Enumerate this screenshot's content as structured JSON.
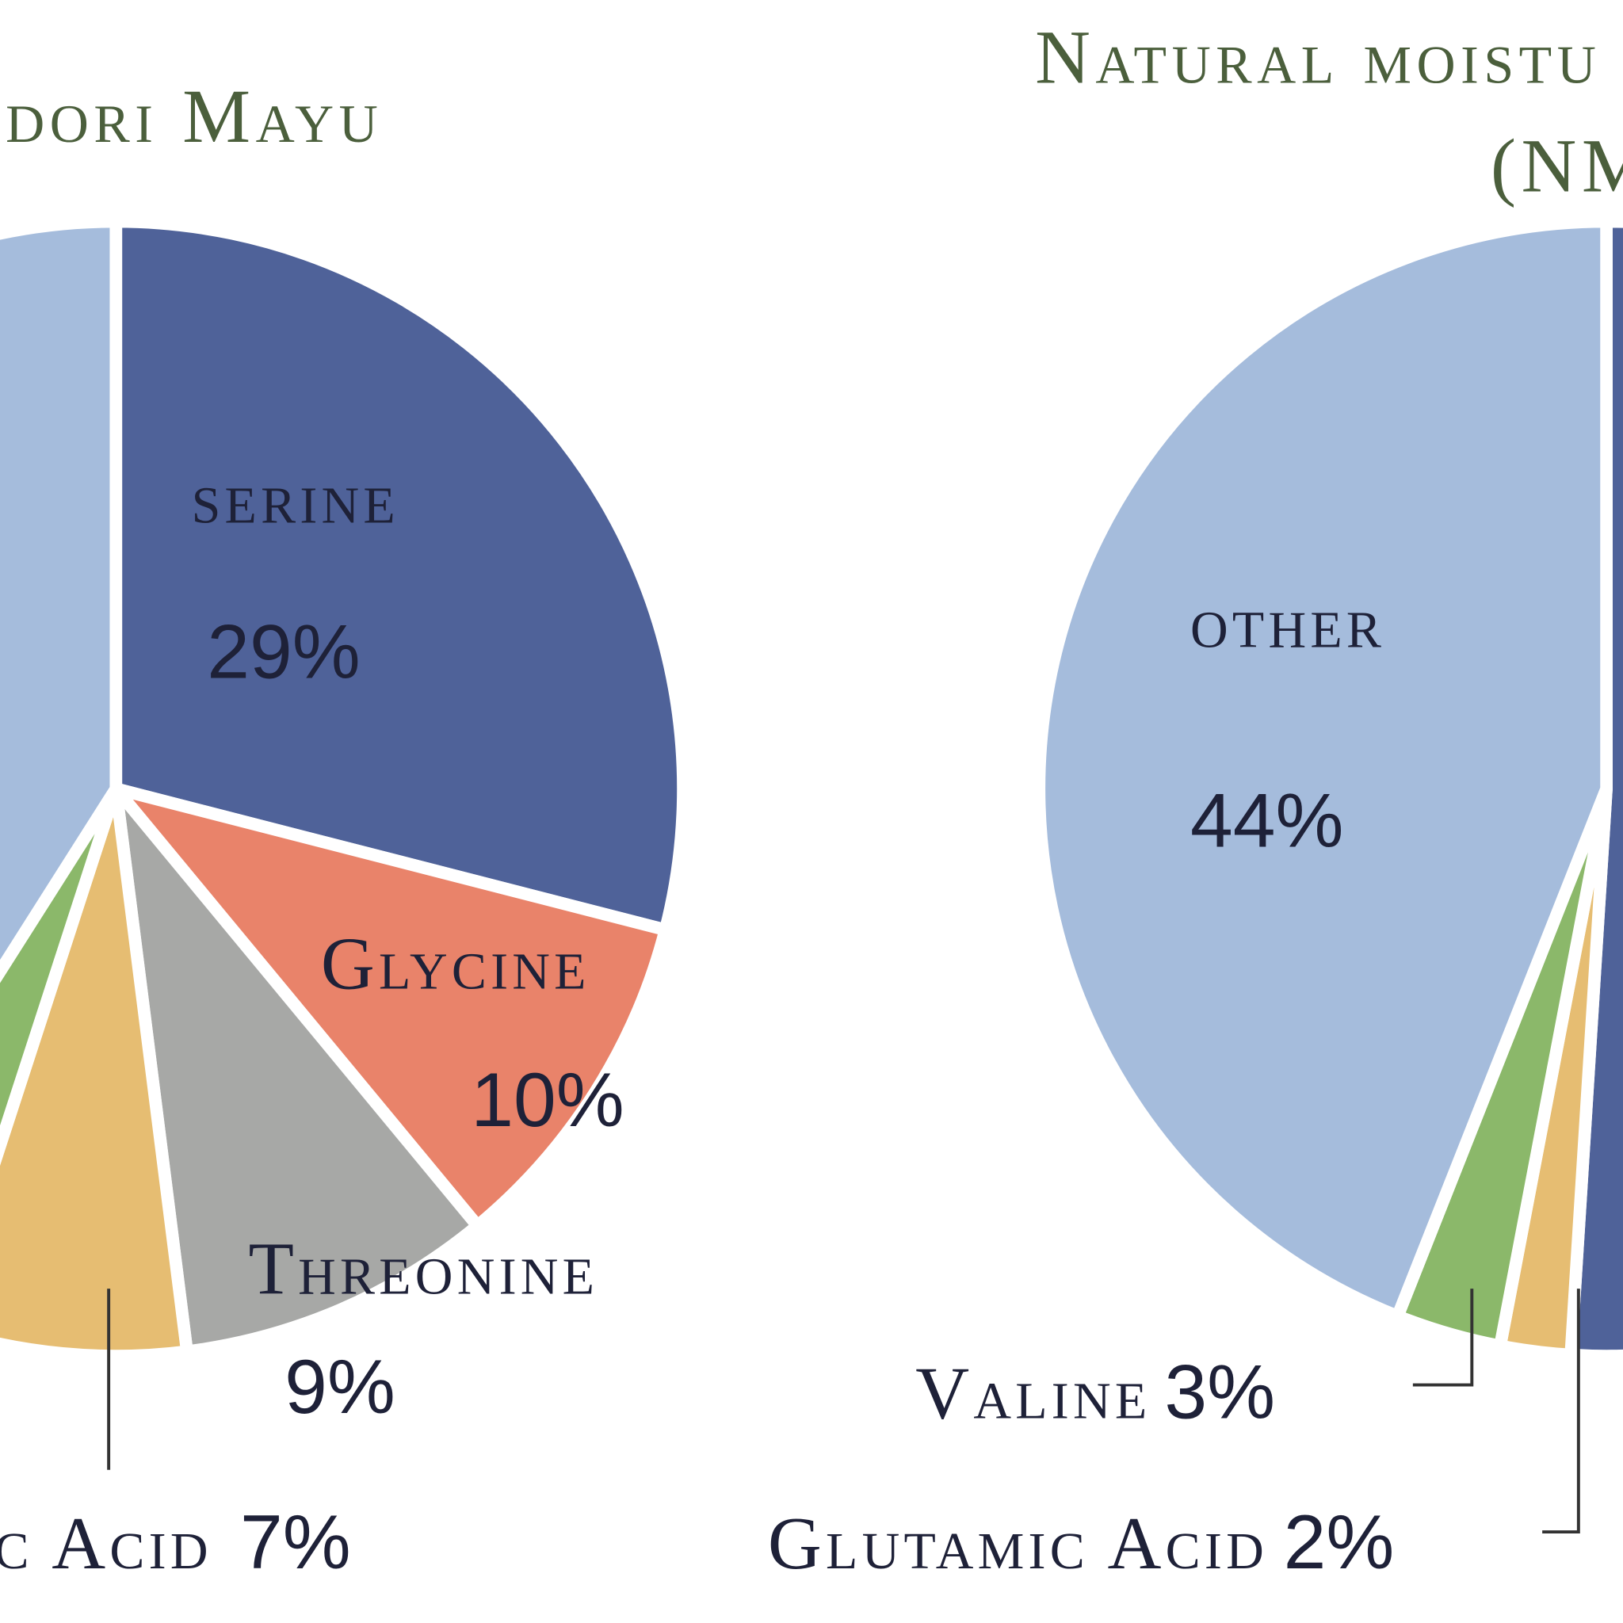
{
  "chart_data": [
    {
      "type": "pie",
      "title": "dori Mayu",
      "categories": [
        "serine",
        "Glycine",
        "Threonine",
        "c Acid",
        null,
        null
      ],
      "values": [
        29,
        10,
        9,
        7,
        4,
        41
      ],
      "value_labels": [
        "29%",
        "10%",
        "9%",
        "7%",
        null,
        null
      ],
      "colors": [
        "#4f6299",
        "#e9836a",
        "#a7a8a6",
        "#e6bd72",
        "#8bb86a",
        "#a5bcdc"
      ]
    },
    {
      "type": "pie",
      "title": "Natural moistu",
      "subtitle": "(NM",
      "categories": [
        null,
        "Glutamic Acid",
        "Valine",
        "other"
      ],
      "values": [
        51,
        2,
        3,
        44
      ],
      "value_labels": [
        null,
        "2%",
        "3%",
        "44%"
      ],
      "colors": [
        "#4f6299",
        "#e6bd72",
        "#8bb86a",
        "#a5bcdc"
      ]
    }
  ]
}
